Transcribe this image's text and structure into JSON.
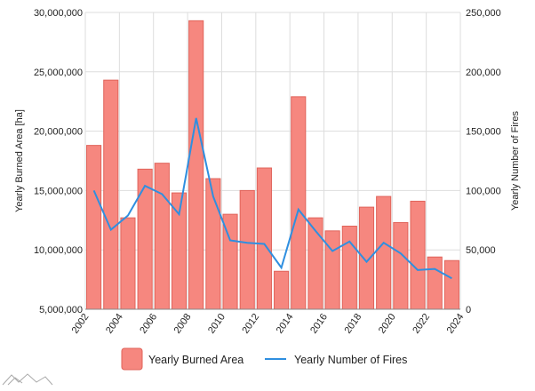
{
  "chart_data": {
    "type": "bar",
    "colors": {
      "bar_fill": "#f6877f",
      "bar_stroke": "#e0635a",
      "line": "#2f8fe0",
      "grid": "#dddddd",
      "axis": "#888888",
      "logo": "#aaaaaa"
    },
    "x": [
      2002,
      2003,
      2004,
      2005,
      2006,
      2007,
      2008,
      2009,
      2010,
      2011,
      2012,
      2013,
      2014,
      2015,
      2016,
      2017,
      2018,
      2019,
      2020,
      2021,
      2022,
      2023
    ],
    "x_ticks": [
      "2002",
      "2004",
      "2006",
      "2008",
      "2010",
      "2012",
      "2014",
      "2016",
      "2018",
      "2020",
      "2022",
      "2024"
    ],
    "x_range": [
      2002,
      2024
    ],
    "series": [
      {
        "name": "Yearly Burned Area",
        "type": "bar",
        "axis": "left",
        "values": [
          18800000,
          24300000,
          12700000,
          16800000,
          17300000,
          14800000,
          29300000,
          16000000,
          13000000,
          15000000,
          16900000,
          8200000,
          22900000,
          12700000,
          11600000,
          12000000,
          13600000,
          14500000,
          12300000,
          14100000,
          9400000,
          9100000
        ]
      },
      {
        "name": "Yearly Number of Fires",
        "type": "line",
        "axis": "right",
        "values": [
          100000,
          67000,
          79000,
          104000,
          97000,
          80000,
          161000,
          95000,
          58000,
          56000,
          55000,
          35000,
          84000,
          66000,
          49000,
          57000,
          40000,
          56000,
          47000,
          33000,
          34000,
          26000
        ]
      }
    ],
    "y_left": {
      "label": "Yearly Burned Area [ha]",
      "range": [
        5000000,
        30000000
      ],
      "ticks": [
        "5,000,000",
        "10,000,000",
        "15,000,000",
        "20,000,000",
        "25,000,000",
        "30,000,000"
      ]
    },
    "y_right": {
      "label": "Yearly Number of Fires",
      "range": [
        0,
        250000
      ],
      "ticks": [
        "0",
        "50,000",
        "100,000",
        "150,000",
        "200,000",
        "250,000"
      ]
    },
    "grid": true,
    "legend": {
      "position": "bottom",
      "items": [
        "Yearly Burned Area",
        "Yearly Number of Fires"
      ]
    }
  }
}
